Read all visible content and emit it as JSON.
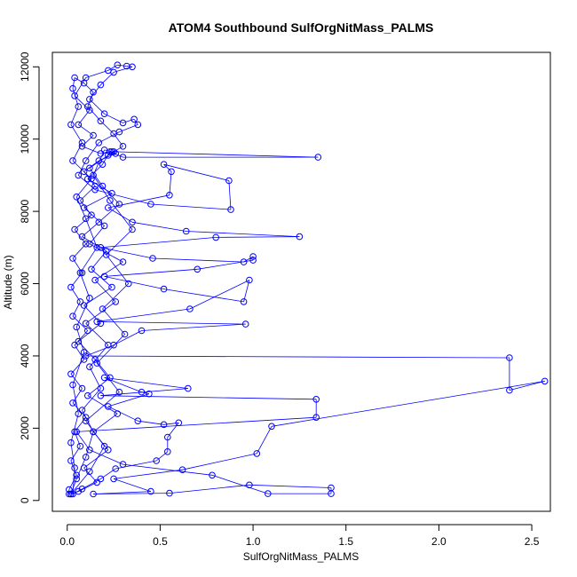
{
  "chart_data": {
    "type": "line",
    "title": "ATOM4 Southbound SulfOrgNitMass_PALMS",
    "xlabel": "SulfOrgNitMass_PALMS",
    "ylabel": "Altitude (m)",
    "xlim": [
      -0.08,
      2.6
    ],
    "ylim": [
      -300,
      12400
    ],
    "x_ticks": [
      0.0,
      0.5,
      1.0,
      1.5,
      2.0,
      2.5
    ],
    "x_tick_labels": [
      "0.0",
      "0.5",
      "1.0",
      "1.5",
      "2.0",
      "2.5"
    ],
    "y_ticks": [
      0,
      2000,
      4000,
      6000,
      8000,
      10000,
      12000
    ],
    "y_tick_labels": [
      "0",
      "2000",
      "4000",
      "6000",
      "8000",
      "10000",
      "12000"
    ],
    "grid": false,
    "series_color": "#0000ff",
    "marker": "open-circle",
    "series": [
      {
        "points": [
          [
            0.02,
            180
          ],
          [
            0.05,
            600
          ],
          [
            0.1,
            1200
          ],
          [
            0.14,
            1900
          ],
          [
            0.08,
            2500
          ],
          [
            0.18,
            3100
          ],
          [
            0.12,
            3700
          ],
          [
            0.22,
            4300
          ],
          [
            0.1,
            4900
          ],
          [
            0.26,
            5500
          ],
          [
            0.15,
            6100
          ],
          [
            0.3,
            6600
          ],
          [
            0.12,
            7100
          ],
          [
            0.2,
            7600
          ],
          [
            0.09,
            8100
          ],
          [
            0.24,
            8500
          ],
          [
            0.11,
            8900
          ],
          [
            0.19,
            9300
          ],
          [
            0.23,
            9650
          ],
          [
            0.3,
            9500
          ],
          [
            1.35,
            9500
          ],
          [
            0.25,
            9650
          ],
          [
            0.18,
            9600
          ],
          [
            0.08,
            9800
          ],
          [
            0.14,
            10100
          ],
          [
            0.06,
            10400
          ],
          [
            0.12,
            10800
          ],
          [
            0.04,
            11200
          ],
          [
            0.1,
            11700
          ],
          [
            0.22,
            11900
          ],
          [
            0.27,
            12050
          ],
          [
            0.32,
            12020
          ],
          [
            0.35,
            12000
          ],
          [
            0.25,
            11850
          ],
          [
            0.18,
            11500
          ],
          [
            0.12,
            11100
          ],
          [
            0.2,
            10700
          ],
          [
            0.3,
            10450
          ],
          [
            0.36,
            10550
          ],
          [
            0.38,
            10400
          ],
          [
            0.28,
            10200
          ],
          [
            0.17,
            9900
          ],
          [
            0.1,
            9400
          ],
          [
            0.06,
            9000
          ],
          [
            0.15,
            8600
          ],
          [
            0.45,
            8200
          ],
          [
            0.88,
            8050
          ],
          [
            0.87,
            8850
          ],
          [
            0.52,
            9300
          ],
          [
            0.56,
            9100
          ],
          [
            0.55,
            8450
          ],
          [
            0.22,
            8100
          ],
          [
            0.35,
            7700
          ],
          [
            0.64,
            7450
          ],
          [
            1.25,
            7300
          ],
          [
            0.8,
            7280
          ],
          [
            0.18,
            7000
          ],
          [
            0.46,
            6700
          ],
          [
            0.95,
            6600
          ],
          [
            1.0,
            6750
          ],
          [
            1.0,
            6650
          ],
          [
            0.7,
            6400
          ],
          [
            0.2,
            6200
          ],
          [
            0.52,
            5850
          ],
          [
            0.95,
            5500
          ],
          [
            0.98,
            6100
          ],
          [
            0.66,
            5300
          ],
          [
            0.16,
            4950
          ],
          [
            0.96,
            4880
          ],
          [
            0.4,
            4700
          ],
          [
            0.25,
            4300
          ],
          [
            0.1,
            4000
          ],
          [
            2.38,
            3950
          ],
          [
            2.38,
            3050
          ],
          [
            2.57,
            3300
          ],
          [
            1.1,
            2050
          ],
          [
            1.02,
            1300
          ],
          [
            0.62,
            850
          ],
          [
            0.25,
            600
          ],
          [
            0.45,
            250
          ],
          [
            0.14,
            180
          ],
          [
            0.55,
            200
          ],
          [
            0.98,
            430
          ],
          [
            1.42,
            350
          ],
          [
            1.42,
            190
          ],
          [
            1.08,
            190
          ],
          [
            0.78,
            700
          ],
          [
            0.3,
            1000
          ],
          [
            0.12,
            1400
          ],
          [
            0.05,
            1900
          ],
          [
            1.34,
            2300
          ],
          [
            1.34,
            2800
          ],
          [
            0.18,
            2900
          ],
          [
            0.65,
            3100
          ],
          [
            0.2,
            3400
          ],
          [
            0.4,
            3000
          ],
          [
            0.44,
            2950
          ],
          [
            0.22,
            2600
          ],
          [
            0.38,
            2200
          ],
          [
            0.52,
            2100
          ],
          [
            0.6,
            2150
          ],
          [
            0.54,
            1750
          ],
          [
            0.54,
            1350
          ],
          [
            0.48,
            1100
          ],
          [
            0.26,
            880
          ],
          [
            0.18,
            600
          ],
          [
            0.08,
            320
          ],
          [
            0.03,
            180
          ],
          [
            0.04,
            900
          ],
          [
            0.02,
            1600
          ],
          [
            0.06,
            2400
          ],
          [
            0.03,
            3200
          ],
          [
            0.09,
            4100
          ],
          [
            0.05,
            4800
          ],
          [
            0.12,
            5600
          ],
          [
            0.07,
            6300
          ],
          [
            0.16,
            7000
          ],
          [
            0.1,
            7800
          ],
          [
            0.05,
            8400
          ],
          [
            0.13,
            8900
          ],
          [
            0.03,
            9400
          ],
          [
            0.08,
            9900
          ],
          [
            0.02,
            10400
          ],
          [
            0.06,
            10900
          ],
          [
            0.03,
            11400
          ],
          [
            0.04,
            11700
          ],
          [
            0.09,
            11550
          ],
          [
            0.14,
            11300
          ],
          [
            0.11,
            10900
          ],
          [
            0.18,
            10500
          ],
          [
            0.25,
            10150
          ],
          [
            0.3,
            9800
          ],
          [
            0.22,
            9550
          ],
          [
            0.12,
            9200
          ],
          [
            0.19,
            8700
          ],
          [
            0.28,
            8200
          ],
          [
            0.17,
            7700
          ],
          [
            0.08,
            7300
          ],
          [
            0.21,
            6900
          ],
          [
            0.13,
            6400
          ],
          [
            0.24,
            5900
          ],
          [
            0.09,
            5400
          ],
          [
            0.18,
            4900
          ],
          [
            0.06,
            4400
          ],
          [
            0.15,
            3900
          ],
          [
            0.23,
            3400
          ],
          [
            0.11,
            2900
          ],
          [
            0.27,
            2400
          ],
          [
            0.14,
            1900
          ],
          [
            0.22,
            1400
          ],
          [
            0.09,
            900
          ],
          [
            0.16,
            500
          ],
          [
            0.06,
            250
          ],
          [
            0.02,
            180
          ],
          [
            0.12,
            800
          ],
          [
            0.2,
            1500
          ],
          [
            0.1,
            2200
          ],
          [
            0.28,
            3000
          ],
          [
            0.16,
            3800
          ],
          [
            0.31,
            4600
          ],
          [
            0.19,
            5300
          ],
          [
            0.33,
            6000
          ],
          [
            0.21,
            6800
          ],
          [
            0.35,
            7500
          ],
          [
            0.23,
            8300
          ],
          [
            0.14,
            9000
          ],
          [
            0.2,
            9700
          ],
          [
            0.24,
            9650
          ],
          [
            0.26,
            9600
          ],
          [
            0.17,
            9400
          ],
          [
            0.09,
            9100
          ],
          [
            0.15,
            8700
          ],
          [
            0.07,
            8300
          ],
          [
            0.13,
            7900
          ],
          [
            0.04,
            7500
          ],
          [
            0.1,
            7100
          ],
          [
            0.03,
            6700
          ],
          [
            0.08,
            6300
          ],
          [
            0.02,
            5900
          ],
          [
            0.07,
            5500
          ],
          [
            0.03,
            5100
          ],
          [
            0.11,
            4700
          ],
          [
            0.04,
            4300
          ],
          [
            0.09,
            3900
          ],
          [
            0.02,
            3500
          ],
          [
            0.08,
            3100
          ],
          [
            0.03,
            2700
          ],
          [
            0.1,
            2300
          ],
          [
            0.04,
            1900
          ],
          [
            0.07,
            1500
          ],
          [
            0.02,
            1100
          ],
          [
            0.05,
            700
          ],
          [
            0.01,
            300
          ],
          [
            0.01,
            180
          ]
        ]
      }
    ]
  }
}
